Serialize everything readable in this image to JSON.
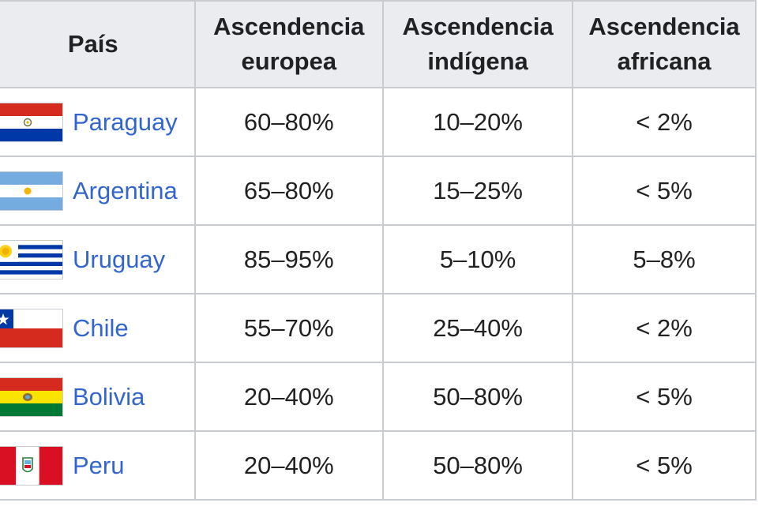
{
  "table": {
    "headers": {
      "country": "País",
      "european": [
        "Ascendencia",
        "europea"
      ],
      "indigenous": [
        "Ascendencia",
        "indígena"
      ],
      "african": [
        "Ascendencia",
        "africana"
      ]
    },
    "rows": [
      {
        "country": "Paraguay",
        "flag_icon": "paraguay-flag-icon",
        "european": "60–80%",
        "indigenous": "10–20%",
        "african": "< 2%"
      },
      {
        "country": "Argentina",
        "flag_icon": "argentina-flag-icon",
        "european": "65–80%",
        "indigenous": "15–25%",
        "african": "< 5%"
      },
      {
        "country": "Uruguay",
        "flag_icon": "uruguay-flag-icon",
        "european": "85–95%",
        "indigenous": "5–10%",
        "african": "5–8%"
      },
      {
        "country": "Chile",
        "flag_icon": "chile-flag-icon",
        "european": "55–70%",
        "indigenous": "25–40%",
        "african": "< 2%"
      },
      {
        "country": "Bolivia",
        "flag_icon": "bolivia-flag-icon",
        "european": "20–40%",
        "indigenous": "50–80%",
        "african": "< 5%"
      },
      {
        "country": "Peru",
        "flag_icon": "peru-flag-icon",
        "european": "20–40%",
        "indigenous": "50–80%",
        "african": "< 5%"
      }
    ]
  },
  "colors": {
    "header_bg": "#eaecf0",
    "border": "#c8ccd1",
    "link": "#3366cc",
    "text": "#202122"
  }
}
